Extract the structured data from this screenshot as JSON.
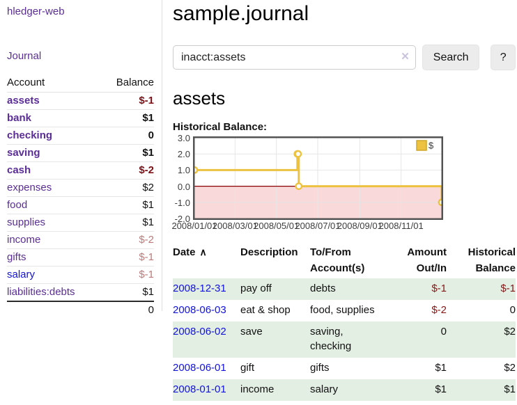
{
  "colors": {
    "link_purple": "#5b2d96",
    "link_blue": "#1212dd",
    "negative_strong": "#7d1016",
    "negative_soft": "#bc7a7a",
    "row_green": "#e3efe3",
    "chart_line": "#edc240",
    "chart_negative_fill": "#f9d9d9",
    "chart_zero_line": "#8b0000",
    "chart_grid": "#e6e6e6",
    "chart_border": "#545454"
  },
  "sidebar": {
    "app_title": "hledger-web",
    "nav": {
      "journal": "Journal"
    },
    "table": {
      "account_header": "Account",
      "balance_header": "Balance"
    },
    "accounts": [
      {
        "name": "assets",
        "level": 1,
        "bold": true,
        "balance": "$-1",
        "balance_tone": "neg"
      },
      {
        "name": "bank",
        "level": 2,
        "bold": true,
        "balance": "$1",
        "balance_tone": ""
      },
      {
        "name": "checking",
        "level": 3,
        "bold": true,
        "balance": "0",
        "balance_tone": ""
      },
      {
        "name": "saving",
        "level": 3,
        "bold": true,
        "balance": "$1",
        "balance_tone": ""
      },
      {
        "name": "cash",
        "level": 2,
        "bold": true,
        "balance": "$-2",
        "balance_tone": "neg"
      },
      {
        "name": "expenses",
        "level": 1,
        "bold": false,
        "balance": "$2",
        "balance_tone": ""
      },
      {
        "name": "food",
        "level": 2,
        "bold": false,
        "balance": "$1",
        "balance_tone": ""
      },
      {
        "name": "supplies",
        "level": 2,
        "bold": false,
        "balance": "$1",
        "balance_tone": ""
      },
      {
        "name": "income",
        "level": 1,
        "bold": false,
        "balance": "$-2",
        "balance_tone": "negsoft"
      },
      {
        "name": "gifts",
        "level": 2,
        "bold": false,
        "balance": "$-1",
        "balance_tone": "negsoft"
      },
      {
        "name": "salary",
        "level": 2,
        "bold": false,
        "balance": "$-1",
        "balance_tone": "negsoft",
        "link_blue": true
      },
      {
        "name": "liabilities:debts",
        "level": 1,
        "bold": false,
        "balance": "$1",
        "balance_tone": ""
      }
    ],
    "total": "0"
  },
  "main": {
    "title": "sample.journal",
    "search": {
      "value": "inacct:assets",
      "clear_icon": "✕",
      "search_button": "Search",
      "help_button": "?"
    },
    "account_heading": "assets",
    "chart_label": "Historical Balance:",
    "table": {
      "sort_icon": "∧",
      "headers": [
        {
          "label": "Date",
          "sorted": "asc"
        },
        {
          "label": "Description"
        },
        {
          "label": "To/From Account(s)"
        },
        {
          "label": "Amount Out/In"
        },
        {
          "label": "Historical Balance"
        }
      ],
      "rows": [
        {
          "date": "2008-12-31",
          "description": "pay off",
          "accounts": "debts",
          "amount": "$-1",
          "balance": "$-1",
          "green": true
        },
        {
          "date": "2008-06-03",
          "description": "eat & shop",
          "accounts": "food, supplies",
          "amount": "$-2",
          "balance": "0",
          "green": false
        },
        {
          "date": "2008-06-02",
          "description": "save",
          "accounts": "saving, checking",
          "amount": "0",
          "balance": "$2",
          "green": true
        },
        {
          "date": "2008-06-01",
          "description": "gift",
          "accounts": "gifts",
          "amount": "$1",
          "balance": "$2",
          "green": false
        },
        {
          "date": "2008-01-01",
          "description": "income",
          "accounts": "salary",
          "amount": "$1",
          "balance": "$1",
          "green": true
        }
      ]
    }
  },
  "chart_data": {
    "type": "line",
    "step": true,
    "title": "Historical Balance:",
    "series": [
      {
        "name": "$",
        "color": "#edc240",
        "points": [
          [
            "2008-01-01",
            1
          ],
          [
            "2008-06-01",
            2
          ],
          [
            "2008-06-02",
            2
          ],
          [
            "2008-06-03",
            0
          ],
          [
            "2008-12-31",
            -1
          ]
        ]
      }
    ],
    "xrange": [
      "2008-01-01",
      "2008-12-31"
    ],
    "ylim": [
      -2,
      3
    ],
    "yticks": [
      "3.0",
      "2.0",
      "1.0",
      "0.0",
      "-1.0",
      "-2.0"
    ],
    "xticks": [
      "2008/01/01",
      "2008/03/01",
      "2008/05/01",
      "2008/07/01",
      "2008/09/01",
      "2008/11/01"
    ],
    "grid": true,
    "legend_position": "top-right",
    "negative_region_shaded": true
  }
}
